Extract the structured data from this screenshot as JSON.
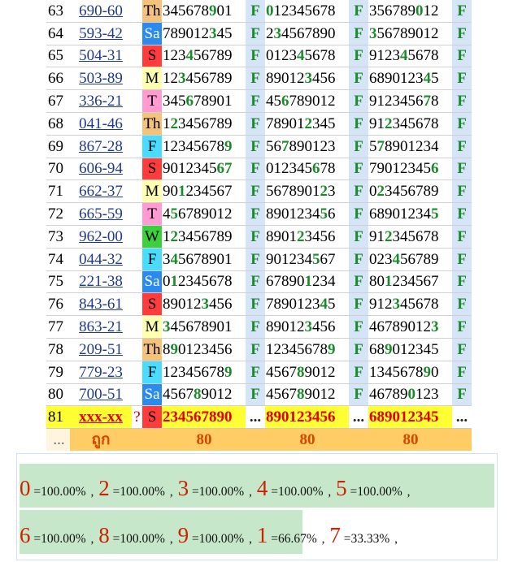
{
  "rows": [
    {
      "idx": "63",
      "code": "690-60",
      "day": "Th",
      "n1": [
        [
          "345678",
          ""
        ],
        [
          "9",
          "g"
        ],
        [
          "01",
          ""
        ]
      ],
      "f1": "F",
      "n2": [
        [
          "0",
          "g"
        ],
        [
          "12345678",
          ""
        ]
      ],
      "f2": "F",
      "n3": [
        [
          "356789",
          ""
        ],
        [
          "0",
          "g"
        ],
        [
          "12",
          ""
        ]
      ],
      "f3": "F"
    },
    {
      "idx": "64",
      "code": "593-42",
      "day": "Sa",
      "n1": [
        [
          "789012",
          ""
        ],
        [
          "3",
          "g"
        ],
        [
          "45",
          ""
        ]
      ],
      "f1": "F",
      "n2": [
        [
          "2",
          ""
        ],
        [
          "3",
          "g"
        ],
        [
          "4567890",
          ""
        ]
      ],
      "f2": "F",
      "n3": [
        [
          "3",
          "g"
        ],
        [
          "56789012",
          ""
        ]
      ],
      "f3": "F"
    },
    {
      "idx": "65",
      "code": "504-31",
      "day": "S",
      "n1": [
        [
          "123",
          ""
        ],
        [
          "4",
          "g"
        ],
        [
          "56789",
          ""
        ]
      ],
      "f1": "F",
      "n2": [
        [
          "0123",
          ""
        ],
        [
          "4",
          "g"
        ],
        [
          "5678",
          ""
        ]
      ],
      "f2": "F",
      "n3": [
        [
          "9123",
          ""
        ],
        [
          "4",
          "g"
        ],
        [
          "5678",
          ""
        ]
      ],
      "f3": "F"
    },
    {
      "idx": "66",
      "code": "503-89",
      "day": "M",
      "n1": [
        [
          "12",
          ""
        ],
        [
          "3",
          "g"
        ],
        [
          "456789",
          ""
        ]
      ],
      "f1": "F",
      "n2": [
        [
          "89012",
          ""
        ],
        [
          "3",
          "g"
        ],
        [
          "456",
          ""
        ]
      ],
      "f2": "F",
      "n3": [
        [
          "6890123",
          ""
        ],
        [
          "4",
          "g"
        ],
        [
          "5",
          ""
        ]
      ],
      "f3": "F"
    },
    {
      "idx": "67",
      "code": "336-21",
      "day": "T",
      "n1": [
        [
          "345",
          ""
        ],
        [
          "6",
          "g"
        ],
        [
          "78901",
          ""
        ]
      ],
      "f1": "F",
      "n2": [
        [
          "45",
          ""
        ],
        [
          "6",
          "g"
        ],
        [
          "789012",
          ""
        ]
      ],
      "f2": "F",
      "n3": [
        [
          "9123456",
          ""
        ],
        [
          "7",
          "g"
        ],
        [
          "8",
          ""
        ]
      ],
      "f3": "F"
    },
    {
      "idx": "68",
      "code": "041-46",
      "day": "Th",
      "n1": [
        [
          "1",
          ""
        ],
        [
          "2",
          "g"
        ],
        [
          "3456789",
          ""
        ]
      ],
      "f1": "F",
      "n2": [
        [
          "78901",
          ""
        ],
        [
          "2",
          "g"
        ],
        [
          "345",
          ""
        ]
      ],
      "f2": "F",
      "n3": [
        [
          "91",
          ""
        ],
        [
          "2",
          "g"
        ],
        [
          "345678",
          ""
        ]
      ],
      "f3": "F"
    },
    {
      "idx": "69",
      "code": "867-28",
      "day": "F",
      "n1": [
        [
          "12345678",
          ""
        ],
        [
          "9",
          "g"
        ]
      ],
      "f1": "F",
      "n2": [
        [
          "56",
          ""
        ],
        [
          "7",
          "g"
        ],
        [
          "890123",
          ""
        ]
      ],
      "f2": "F",
      "n3": [
        [
          "5",
          ""
        ],
        [
          "7",
          "g"
        ],
        [
          "8901234",
          ""
        ]
      ],
      "f3": "F"
    },
    {
      "idx": "70",
      "code": "606-94",
      "day": "S",
      "n1": [
        [
          "9012345",
          ""
        ],
        [
          "67",
          "g"
        ]
      ],
      "f1": "F",
      "n2": [
        [
          "012345",
          ""
        ],
        [
          "6",
          "g"
        ],
        [
          "78",
          ""
        ]
      ],
      "f2": "F",
      "n3": [
        [
          "79012345",
          ""
        ],
        [
          "6",
          "g"
        ]
      ],
      "f3": "F"
    },
    {
      "idx": "71",
      "code": "662-37",
      "day": "M",
      "n1": [
        [
          "90",
          ""
        ],
        [
          "1",
          "g"
        ],
        [
          "234567",
          ""
        ]
      ],
      "f1": "F",
      "n2": [
        [
          "5678901",
          ""
        ],
        [
          "2",
          "g"
        ],
        [
          "3",
          ""
        ]
      ],
      "f2": "F",
      "n3": [
        [
          "0",
          ""
        ],
        [
          "2",
          "g"
        ],
        [
          "3456789",
          ""
        ]
      ],
      "f3": "F"
    },
    {
      "idx": "72",
      "code": "665-59",
      "day": "T",
      "n1": [
        [
          "4",
          ""
        ],
        [
          "5",
          "g"
        ],
        [
          "6789012",
          ""
        ]
      ],
      "f1": "F",
      "n2": [
        [
          "8901234",
          ""
        ],
        [
          "5",
          "g"
        ],
        [
          "6",
          ""
        ]
      ],
      "f2": "F",
      "n3": [
        [
          "68901234",
          ""
        ],
        [
          "5",
          "g"
        ]
      ],
      "f3": "F"
    },
    {
      "idx": "73",
      "code": "962-00",
      "day": "W",
      "n1": [
        [
          "1",
          ""
        ],
        [
          "2",
          "g"
        ],
        [
          "3456789",
          ""
        ]
      ],
      "f1": "F",
      "n2": [
        [
          "8901",
          ""
        ],
        [
          "2",
          "g"
        ],
        [
          "3456",
          ""
        ]
      ],
      "f2": "F",
      "n3": [
        [
          "91",
          ""
        ],
        [
          "2",
          "g"
        ],
        [
          "345678",
          ""
        ]
      ],
      "f3": "F"
    },
    {
      "idx": "74",
      "code": "044-32",
      "day": "F",
      "n1": [
        [
          "3",
          ""
        ],
        [
          "4",
          "g"
        ],
        [
          "5678901",
          ""
        ]
      ],
      "f1": "F",
      "n2": [
        [
          "901234",
          ""
        ],
        [
          "5",
          "g"
        ],
        [
          "67",
          ""
        ]
      ],
      "f2": "F",
      "n3": [
        [
          "023",
          ""
        ],
        [
          "4",
          "g"
        ],
        [
          "56789",
          ""
        ]
      ],
      "f3": "F"
    },
    {
      "idx": "75",
      "code": "221-38",
      "day": "Sa",
      "n1": [
        [
          "0",
          ""
        ],
        [
          "1",
          "g"
        ],
        [
          "2345678",
          ""
        ]
      ],
      "f1": "F",
      "n2": [
        [
          "67890",
          ""
        ],
        [
          "1",
          "g"
        ],
        [
          "234",
          ""
        ]
      ],
      "f2": "F",
      "n3": [
        [
          "80",
          ""
        ],
        [
          "1",
          "g"
        ],
        [
          "234567",
          ""
        ]
      ],
      "f3": "F"
    },
    {
      "idx": "76",
      "code": "843-61",
      "day": "S",
      "n1": [
        [
          "89012",
          ""
        ],
        [
          "3",
          "g"
        ],
        [
          "456",
          ""
        ]
      ],
      "f1": "F",
      "n2": [
        [
          "7890123",
          ""
        ],
        [
          "4",
          "g"
        ],
        [
          "5",
          ""
        ]
      ],
      "f2": "F",
      "n3": [
        [
          "912",
          ""
        ],
        [
          "3",
          "g"
        ],
        [
          "45678",
          ""
        ]
      ],
      "f3": "F"
    },
    {
      "idx": "77",
      "code": "863-21",
      "day": "M",
      "n1": [
        [
          "3",
          "g"
        ],
        [
          "45678901",
          ""
        ]
      ],
      "f1": "F",
      "n2": [
        [
          "89012",
          ""
        ],
        [
          "3",
          "g"
        ],
        [
          "456",
          ""
        ]
      ],
      "f2": "F",
      "n3": [
        [
          "46789012",
          ""
        ],
        [
          "3",
          "g"
        ]
      ],
      "f3": "F"
    },
    {
      "idx": "78",
      "code": "209-51",
      "day": "Th",
      "n1": [
        [
          "8",
          ""
        ],
        [
          "9",
          "g"
        ],
        [
          "0123456",
          ""
        ]
      ],
      "f1": "F",
      "n2": [
        [
          "12345678",
          ""
        ],
        [
          "9",
          "g"
        ]
      ],
      "f2": "F",
      "n3": [
        [
          "68",
          ""
        ],
        [
          "9",
          "g"
        ],
        [
          "012345",
          ""
        ]
      ],
      "f3": "F"
    },
    {
      "idx": "79",
      "code": "779-23",
      "day": "F",
      "n1": [
        [
          "12345678",
          ""
        ],
        [
          "9",
          "g"
        ]
      ],
      "f1": "F",
      "n2": [
        [
          "4567",
          ""
        ],
        [
          "8",
          "g"
        ],
        [
          "9012",
          ""
        ]
      ],
      "f2": "F",
      "n3": [
        [
          "1345678",
          ""
        ],
        [
          "9",
          "g"
        ],
        [
          "0",
          ""
        ]
      ],
      "f3": "F"
    },
    {
      "idx": "80",
      "code": "700-51",
      "day": "Sa",
      "n1": [
        [
          "4567",
          ""
        ],
        [
          "8",
          "g"
        ],
        [
          "9012",
          ""
        ]
      ],
      "f1": "F",
      "n2": [
        [
          "4567",
          ""
        ],
        [
          "8",
          "g"
        ],
        [
          "9012",
          ""
        ]
      ],
      "f2": "F",
      "n3": [
        [
          "46789",
          ""
        ],
        [
          "0",
          "g"
        ],
        [
          "123",
          ""
        ]
      ],
      "f3": "F"
    }
  ],
  "current": {
    "idx": "81",
    "code": "xxx-xx",
    "q": "?",
    "day": "S",
    "n1": "234567890",
    "f1": "...",
    "n2": "890123456",
    "f2": "...",
    "n3": "689012345",
    "f3": "..."
  },
  "footer": {
    "idx": "...",
    "label": "ถูก",
    "c1": "80",
    "c2": "80",
    "c3": "80"
  },
  "stats": [
    [
      {
        "digit": "0",
        "pct": "=100.00%",
        "sep": ","
      },
      {
        "digit": "2",
        "pct": "=100.00%",
        "sep": ","
      },
      {
        "digit": "3",
        "pct": "=100.00%",
        "sep": ","
      },
      {
        "digit": "4",
        "pct": "=100.00%",
        "sep": ","
      },
      {
        "digit": "5",
        "pct": "=100.00%",
        "sep": ","
      }
    ],
    [
      {
        "digit": "6",
        "pct": "=100.00%",
        "sep": ","
      },
      {
        "digit": "8",
        "pct": "=100.00%",
        "sep": ","
      },
      {
        "digit": "9",
        "pct": "=100.00%",
        "sep": ","
      },
      {
        "digit": "1",
        "pct": "=66.67%",
        "sep": ","
      },
      {
        "digit": "7",
        "pct": "=33.33%",
        "sep": ","
      }
    ]
  ],
  "colors": {
    "hit_green": "#1a8a2a",
    "highlight_yellow": "#ffff33",
    "footer_orange": "#ffcc66",
    "stat_bar": "#c6e7c9",
    "digit_red": "#cc2200"
  }
}
